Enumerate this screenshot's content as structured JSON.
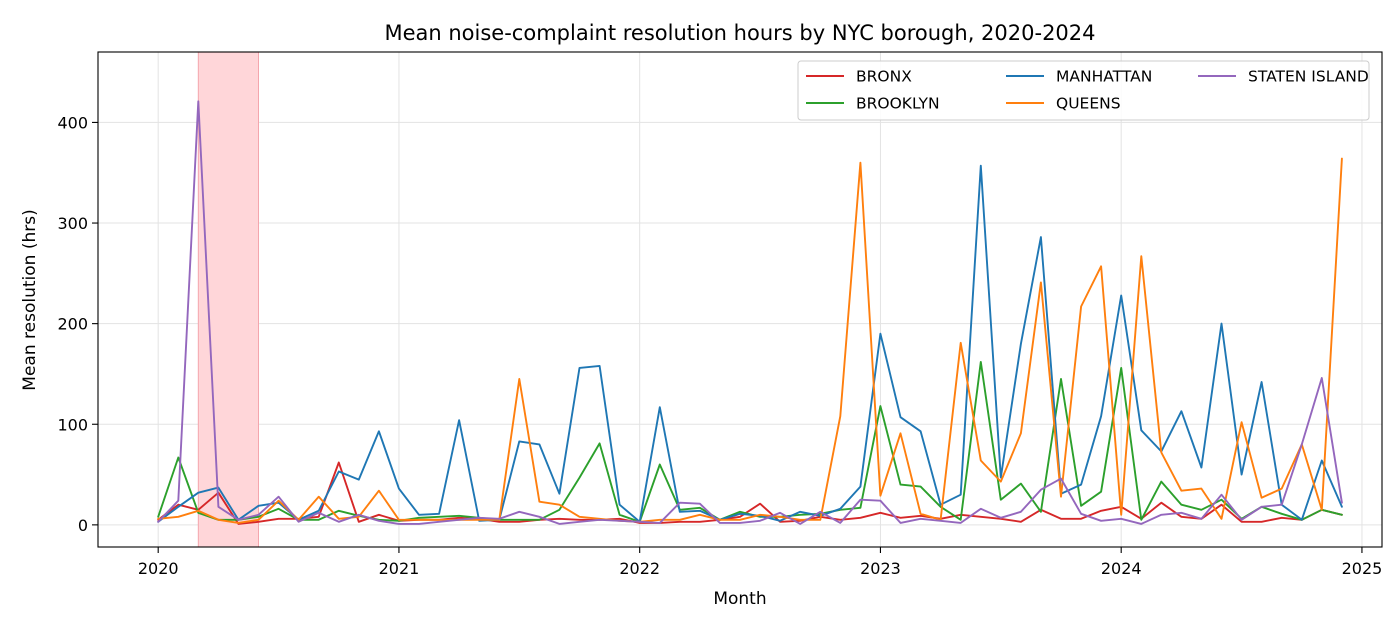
{
  "chart_data": {
    "type": "line",
    "title": "Mean noise-complaint resolution hours by NYC borough, 2020-2024",
    "xlabel": "Month",
    "ylabel": "Mean resolution (hrs)",
    "x_ticks": [
      "2020",
      "2021",
      "2022",
      "2023",
      "2024",
      "2025"
    ],
    "y_ticks": [
      "0",
      "100",
      "200",
      "300",
      "400"
    ],
    "xlim": [
      "2019-10",
      "2025-02"
    ],
    "ylim": [
      -22,
      470
    ],
    "grid": true,
    "legend_position": "top-right",
    "legend_columns": 3,
    "highlight_span": {
      "start": "2020-03",
      "end": "2020-06",
      "color": "#ffd6d9"
    },
    "x": [
      "2020-01",
      "2020-02",
      "2020-03",
      "2020-04",
      "2020-05",
      "2020-06",
      "2020-07",
      "2020-08",
      "2020-09",
      "2020-10",
      "2020-11",
      "2020-12",
      "2021-01",
      "2021-02",
      "2021-03",
      "2021-04",
      "2021-05",
      "2021-06",
      "2021-07",
      "2021-08",
      "2021-09",
      "2021-10",
      "2021-11",
      "2021-12",
      "2022-01",
      "2022-02",
      "2022-03",
      "2022-04",
      "2022-05",
      "2022-06",
      "2022-07",
      "2022-08",
      "2022-09",
      "2022-10",
      "2022-11",
      "2022-12",
      "2023-01",
      "2023-02",
      "2023-03",
      "2023-04",
      "2023-05",
      "2023-06",
      "2023-07",
      "2023-08",
      "2023-09",
      "2023-10",
      "2023-11",
      "2023-12",
      "2024-01",
      "2024-02",
      "2024-03",
      "2024-04",
      "2024-05",
      "2024-06",
      "2024-07",
      "2024-08",
      "2024-09",
      "2024-10",
      "2024-11",
      "2024-12"
    ],
    "series": [
      {
        "name": "BRONX",
        "color": "#d62728",
        "values": [
          5,
          20,
          15,
          32,
          1,
          3,
          6,
          6,
          8,
          62,
          3,
          10,
          4,
          5,
          5,
          7,
          6,
          3,
          3,
          5,
          6,
          5,
          5,
          6,
          2,
          2,
          3,
          3,
          5,
          8,
          21,
          3,
          4,
          8,
          5,
          7,
          12,
          7,
          9,
          6,
          10,
          8,
          6,
          3,
          15,
          6,
          6,
          14,
          18,
          6,
          22,
          8,
          6,
          20,
          3,
          3,
          7,
          5,
          15,
          10
        ]
      },
      {
        "name": "BROOKLYN",
        "color": "#2ca02c",
        "values": [
          8,
          67,
          12,
          5,
          5,
          8,
          16,
          5,
          5,
          14,
          9,
          5,
          4,
          7,
          8,
          9,
          7,
          5,
          5,
          5,
          15,
          47,
          81,
          10,
          3,
          60,
          15,
          17,
          5,
          13,
          8,
          8,
          10,
          11,
          15,
          17,
          118,
          40,
          38,
          18,
          5,
          162,
          25,
          41,
          13,
          145,
          19,
          33,
          156,
          5,
          43,
          20,
          15,
          25,
          6,
          18,
          11,
          5,
          15,
          10
        ]
      },
      {
        "name": "MANHATTAN",
        "color": "#1f77b4",
        "values": [
          3,
          18,
          32,
          37,
          5,
          19,
          22,
          5,
          14,
          53,
          45,
          93,
          36,
          10,
          11,
          104,
          4,
          5,
          83,
          80,
          31,
          156,
          158,
          20,
          3,
          117,
          13,
          14,
          5,
          11,
          9,
          4,
          13,
          9,
          16,
          38,
          190,
          107,
          93,
          20,
          30,
          357,
          47,
          180,
          286,
          31,
          40,
          108,
          228,
          94,
          73,
          113,
          57,
          200,
          50,
          142,
          20,
          5,
          64,
          18
        ]
      },
      {
        "name": "QUEENS",
        "color": "#ff7f0e",
        "values": [
          6,
          8,
          14,
          5,
          2,
          5,
          24,
          5,
          28,
          6,
          8,
          34,
          5,
          5,
          5,
          5,
          5,
          5,
          145,
          23,
          20,
          8,
          6,
          4,
          3,
          5,
          5,
          10,
          5,
          5,
          10,
          8,
          5,
          5,
          108,
          360,
          29,
          91,
          11,
          5,
          181,
          64,
          43,
          91,
          241,
          28,
          217,
          257,
          10,
          267,
          72,
          34,
          36,
          6,
          102,
          27,
          36,
          80,
          15,
          364
        ]
      },
      {
        "name": "STATEN ISLAND",
        "color": "#9467bd",
        "values": [
          3,
          24,
          421,
          18,
          5,
          10,
          28,
          3,
          12,
          3,
          10,
          4,
          1,
          1,
          3,
          5,
          7,
          6,
          13,
          8,
          1,
          3,
          5,
          4,
          3,
          2,
          22,
          21,
          2,
          2,
          4,
          12,
          1,
          13,
          2,
          25,
          24,
          2,
          6,
          4,
          2,
          16,
          7,
          13,
          35,
          46,
          11,
          4,
          6,
          1,
          10,
          12,
          6,
          30,
          5,
          18,
          20,
          80,
          146,
          22
        ]
      }
    ]
  }
}
